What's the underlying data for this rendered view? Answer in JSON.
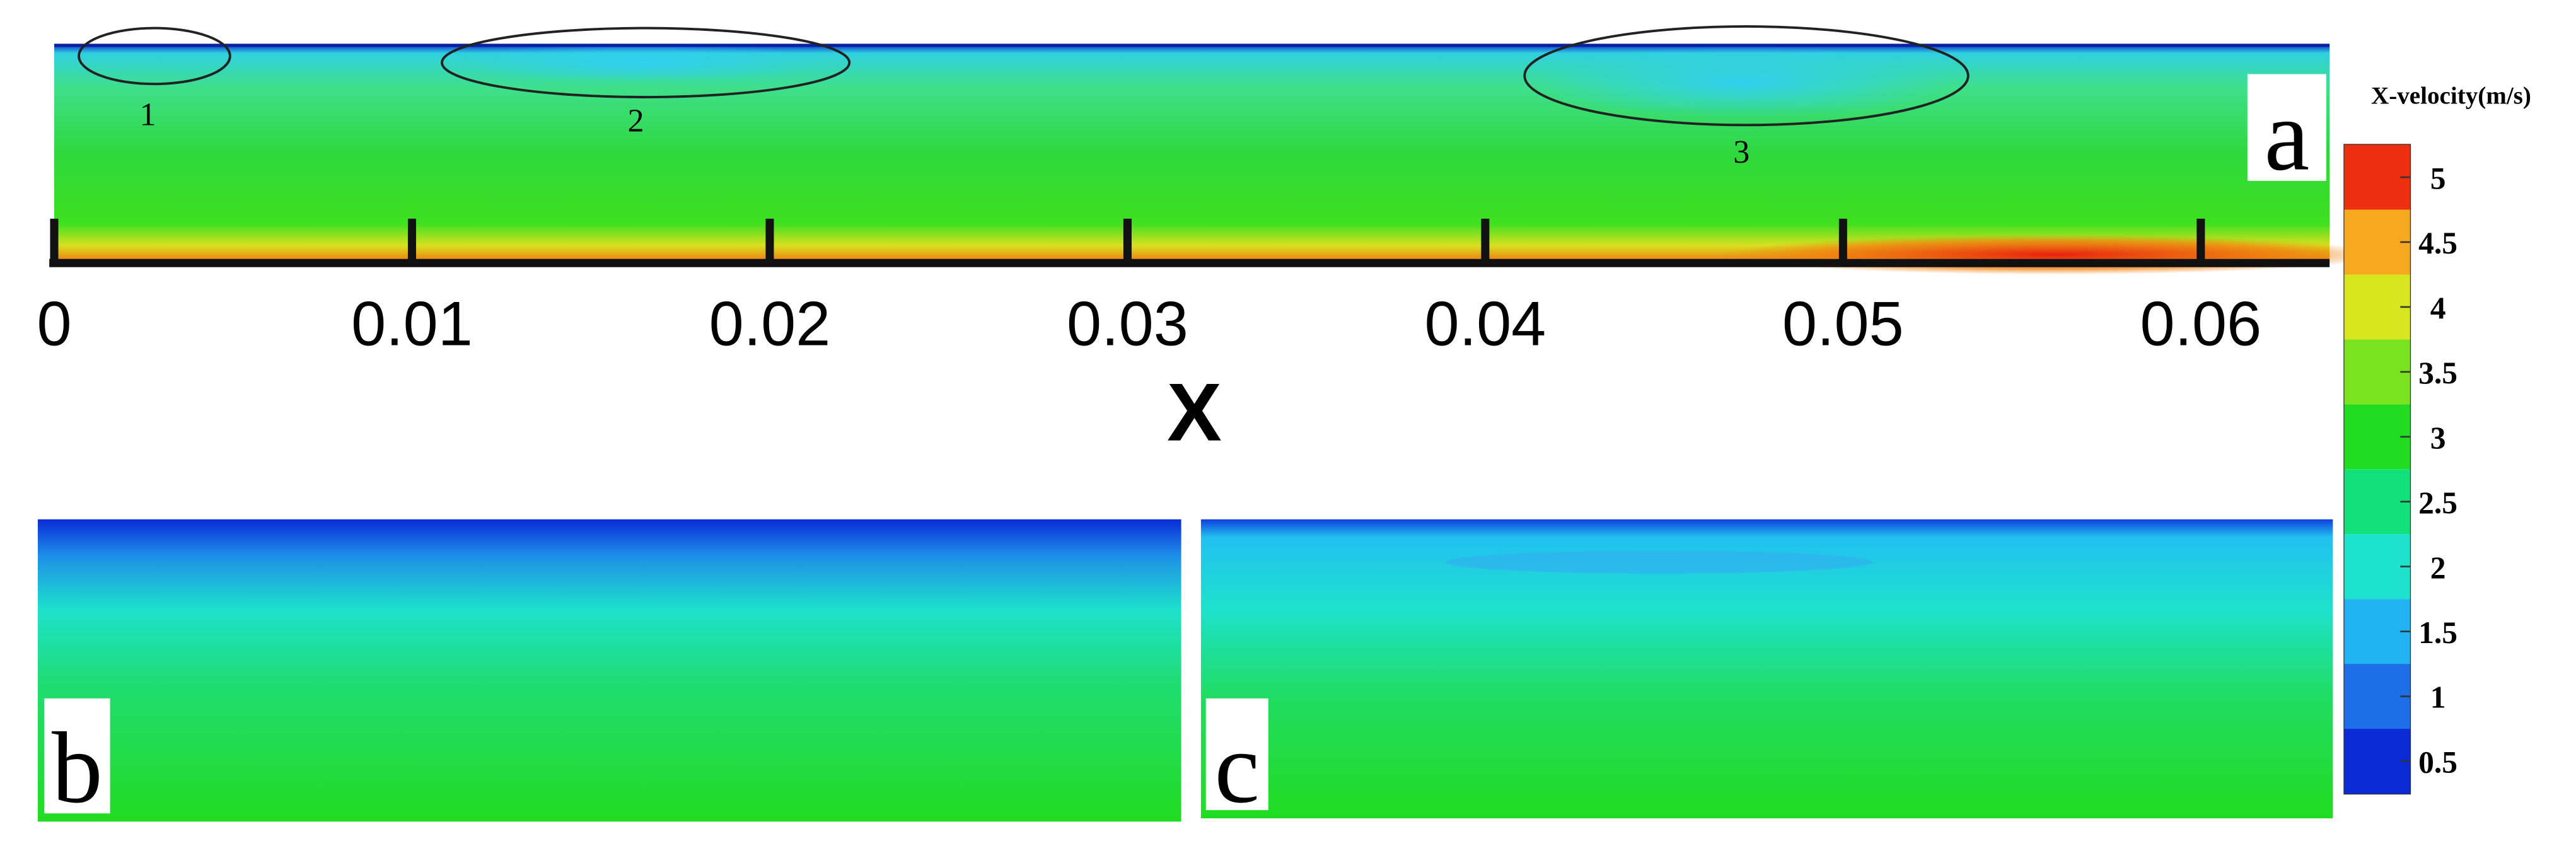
{
  "panels": [
    {
      "label": "a",
      "annotations": [
        "1",
        "2",
        "3"
      ]
    },
    {
      "label": "b"
    },
    {
      "label": "c"
    }
  ],
  "x_axis": {
    "title": "X",
    "lim": [
      0,
      0.0636
    ],
    "ticks": [
      0,
      0.01,
      0.02,
      0.03,
      0.04,
      0.05,
      0.06
    ]
  },
  "colorbar": {
    "title": "X-velocity(m/s)",
    "lim": [
      0.25,
      5.25
    ],
    "ticks": [
      0.5,
      1,
      1.5,
      2,
      2.5,
      3,
      3.5,
      4,
      4.5,
      5
    ],
    "colors": [
      "#0a2bd6",
      "#1e6ee8",
      "#22b4f2",
      "#1de2cc",
      "#12e07a",
      "#22dc22",
      "#7ae21e",
      "#d8e620",
      "#f6a81e",
      "#ee3010"
    ]
  }
}
